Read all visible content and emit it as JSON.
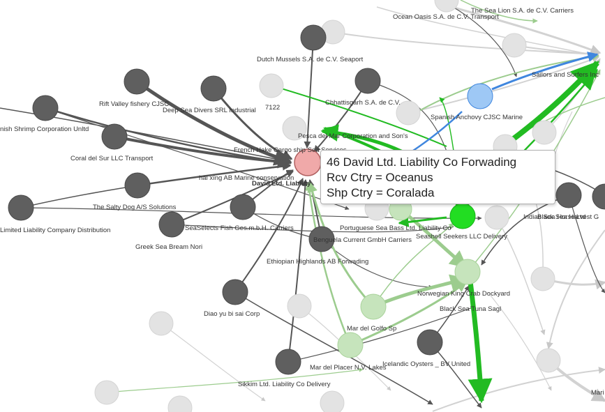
{
  "colors": {
    "node_dark": "#5f5f5f",
    "node_faded": "#e2e2e2",
    "node_selected": "#f0a9a9",
    "node_blue": "#9ec8f5",
    "node_green": "#22dd22",
    "node_lightgreen": "#c6e4bc",
    "edge_dark": "#555555",
    "edge_green": "#22bb22",
    "edge_lightgreen": "#9ccc8e",
    "edge_blue": "#3f86de",
    "edge_faded": "#cfcfcf"
  },
  "labels": {
    "ocean_oasis": "Ocean Oasis S.A. de C.V. Transport",
    "sea_lion": "The Sea Lion S.A. de C.V. Carriers",
    "dutch_mussels": "Dutch Mussels S.A. de C.V. Seaport",
    "sailors_surfers": "Sailors and Surfers Inc",
    "rift_valley": "Rift Valley fishery CJSC",
    "deep_sea_divers": "Deep Sea Divers SRL Industrial",
    "n7122": "7122",
    "chhattisgarh": "Chhattisgarh   S.A. de C.V.",
    "spanish_anchovy": "Spanish Anchovy CJSC Marine",
    "finnish_shrimp": "nish Shrimp Corporation Unltd",
    "pesca_del_mar": "Pesca del Mar Corporation and Son's",
    "coral_del_sur": "Coral del Sur LLC Transport",
    "french_hake": "French Hake Cargo ship Sea Services",
    "david_ltd": "David Ltd. Liability",
    "hai_xing": "hǎi xīng AB Marine conservation",
    "salty_dog": "The Salty Dog A/S Solutions",
    "limited_liability": "Limited Liability Company Distribution",
    "seaselects": "SeaSelects Fish Ges.m.b.H. Carriers",
    "portuguese_sea_bass": "Portuguese Sea Bass Ltd. Liability Co",
    "india_sea_horse": "Indian Sea Horse Ltd",
    "black_sea_harvest": "Black Sea Harvest G",
    "greek_sea_bream": "Greek Sea Bream Nori",
    "benguela": "Benguela Current   GmbH Carriers",
    "seashell_seekers": "Seashell Seekers LLC Delivery",
    "ethiopian": "Ethiopian Highlands  AB Forwading",
    "norwegian_king_crab": "Norwegian King Crab Dockyard",
    "black_sea_tuna": "Black Sea Tuna Sagl",
    "diao_yu": "Diao yu bi sai   Corp",
    "mar_del_golfo": "Mar del Golfo Sp",
    "icelandic_oysters": "Icelandic Oysters _ BV United",
    "mar_del_placer": "Mar del Placer N.V. Lakes",
    "sikkim": "Sikkim  Ltd. Liability Co Delivery",
    "mari": "Mari"
  },
  "tooltip": {
    "line1": "46 David Ltd. Liability Co Forwading",
    "line2": "Rcv Ctry = Oceanus",
    "line3": "Shp Ctry = Coralada"
  }
}
